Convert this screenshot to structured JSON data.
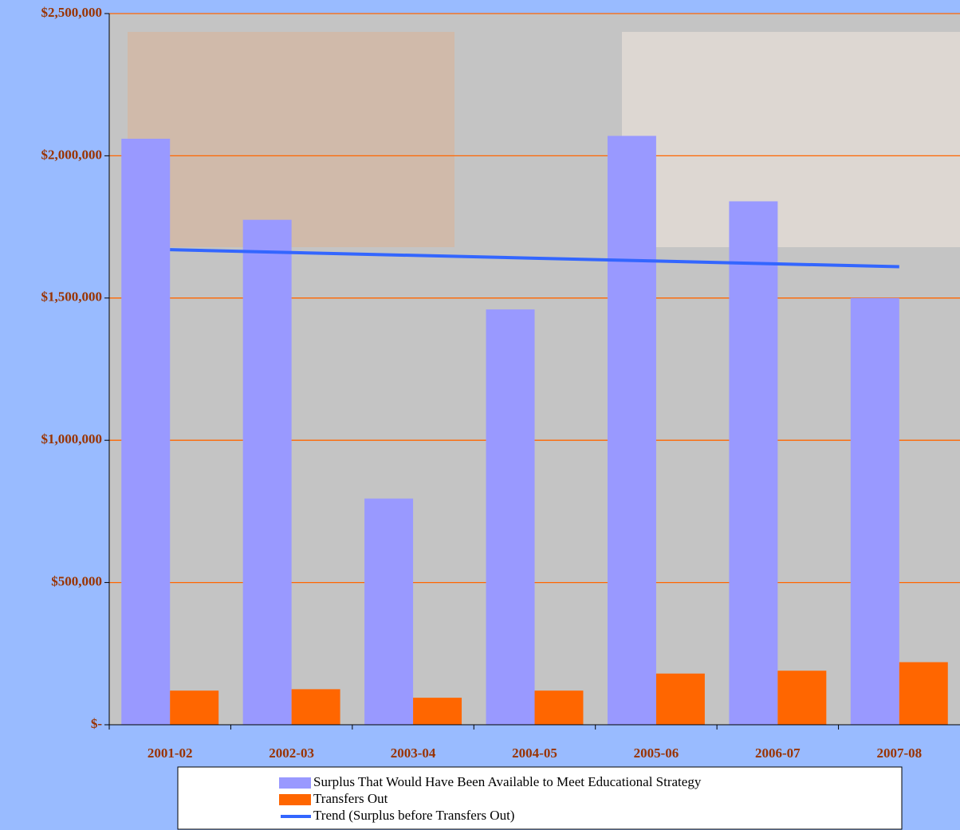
{
  "chart_data": {
    "type": "bar",
    "categories": [
      "2001-02",
      "2002-03",
      "2003-04",
      "2004-05",
      "2005-06",
      "2006-07",
      "2007-08"
    ],
    "series": [
      {
        "name": "Surplus That Would Have Been Available to Meet Educational Strategy",
        "color": "#9999ff",
        "values": [
          2060000,
          1775000,
          795000,
          1460000,
          2070000,
          1840000,
          1500000
        ]
      },
      {
        "name": "Transfers Out",
        "color": "#ff6600",
        "values": [
          120000,
          125000,
          95000,
          120000,
          180000,
          190000,
          220000
        ]
      },
      {
        "name": "Trend (Surplus before Transfers Out)",
        "color": "#3366ff",
        "type": "line",
        "values": [
          1670000,
          1660000,
          1650000,
          1640000,
          1630000,
          1620000,
          1610000
        ]
      }
    ],
    "ylim": [
      0,
      2500000
    ],
    "yticks": [
      {
        "value": 0,
        "label": "$-"
      },
      {
        "value": 500000,
        "label": "$500,000"
      },
      {
        "value": 1000000,
        "label": "$1,000,000"
      },
      {
        "value": 1500000,
        "label": "$1,500,000"
      },
      {
        "value": 2000000,
        "label": "$2,000,000"
      },
      {
        "value": 2500000,
        "label": "$2,500,000"
      }
    ],
    "grid": true,
    "gridcolor": "#ff6600",
    "legend": "bottom"
  }
}
